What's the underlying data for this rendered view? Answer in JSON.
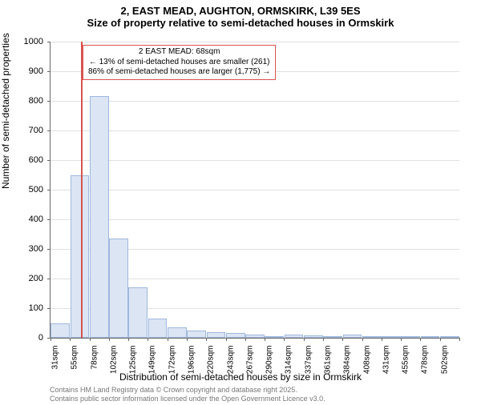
{
  "title_main": "2, EAST MEAD, AUGHTON, ORMSKIRK, L39 5ES",
  "title_sub": "Size of property relative to semi-detached houses in Ormskirk",
  "ylabel": "Number of semi-detached properties",
  "xlabel": "Distribution of semi-detached houses by size in Ormskirk",
  "footer_line1": "Contains HM Land Registry data © Crown copyright and database right 2025.",
  "footer_line2": "Contains public sector information licensed under the Open Government Licence v3.0.",
  "annotation": {
    "line1": "2 EAST MEAD: 68sqm",
    "line2": "← 13% of semi-detached houses are smaller (261)",
    "line3": "86% of semi-detached houses are larger (1,775) →"
  },
  "chart": {
    "type": "bar",
    "ylim": [
      0,
      1000
    ],
    "ytick_step": 100,
    "background_color": "#ffffff",
    "grid_color": "#e0e0e0",
    "bar_fill": "#dbe5f4",
    "bar_border": "#9fb8de",
    "marker_color": "#d9534f",
    "marker_value": 68,
    "x_start": 31,
    "x_step": 23.5,
    "categories": [
      "31sqm",
      "55sqm",
      "78sqm",
      "102sqm",
      "125sqm",
      "149sqm",
      "172sqm",
      "196sqm",
      "220sqm",
      "243sqm",
      "267sqm",
      "290sqm",
      "314sqm",
      "337sqm",
      "361sqm",
      "384sqm",
      "408sqm",
      "431sqm",
      "455sqm",
      "478sqm",
      "502sqm"
    ],
    "values": [
      50,
      550,
      815,
      335,
      170,
      65,
      35,
      25,
      20,
      15,
      10,
      2,
      12,
      8,
      4,
      10,
      3,
      1,
      0,
      1,
      1
    ]
  }
}
